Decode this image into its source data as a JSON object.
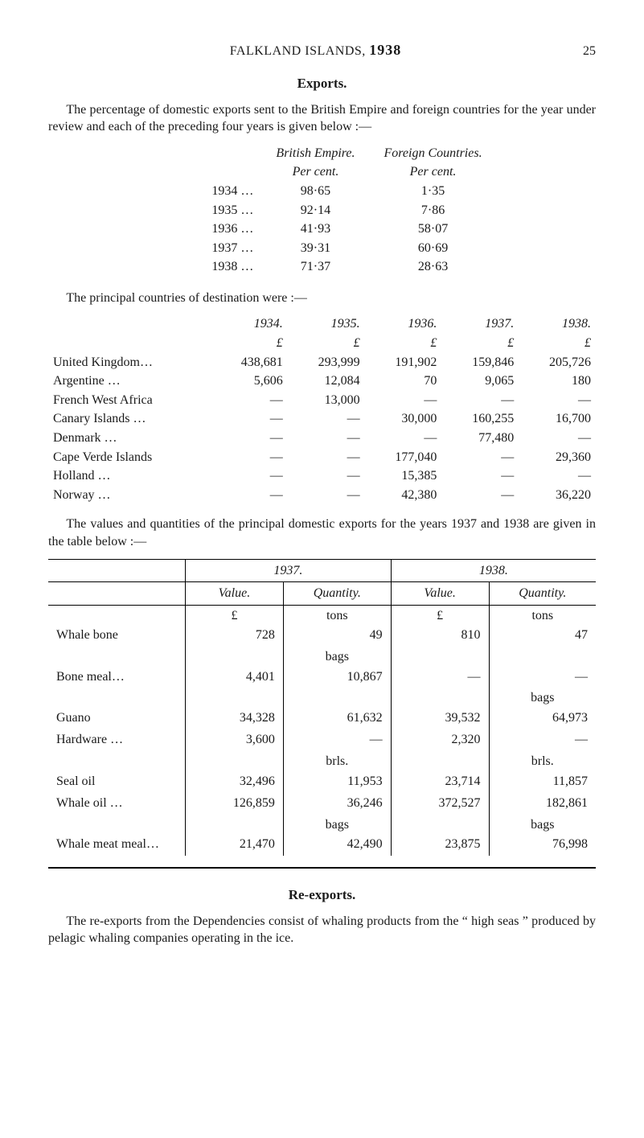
{
  "header": {
    "running_head_prefix": "FALKLAND ISLANDS,",
    "running_head_year": "1938",
    "page_number": "25"
  },
  "section_exports": {
    "title": "Exports.",
    "para1": "The percentage of domestic exports sent to the British Empire and foreign countries for the year under review and each of the preceding four years is given below :—",
    "table1": {
      "col_headers": [
        "",
        "British Empire.",
        "Foreign Countries."
      ],
      "sub_headers": [
        "",
        "Per cent.",
        "Per cent."
      ],
      "rows": [
        {
          "year": "1934  …",
          "be": "98·65",
          "fc": "1·35"
        },
        {
          "year": "1935  …",
          "be": "92·14",
          "fc": "7·86"
        },
        {
          "year": "1936  …",
          "be": "41·93",
          "fc": "58·07"
        },
        {
          "year": "1937  …",
          "be": "39·31",
          "fc": "60·69"
        },
        {
          "year": "1938  …",
          "be": "71·37",
          "fc": "28·63"
        }
      ]
    },
    "para2": "The principal countries of destination were :—",
    "table2": {
      "year_headers": [
        "1934.",
        "1935.",
        "1936.",
        "1937.",
        "1938."
      ],
      "unit_headers": [
        "£",
        "£",
        "£",
        "£",
        "£"
      ],
      "rows": [
        {
          "lbl": "United Kingdom…",
          "v": [
            "438,681",
            "293,999",
            "191,902",
            "159,846",
            "205,726"
          ]
        },
        {
          "lbl": "Argentine …",
          "v": [
            "5,606",
            "12,084",
            "70",
            "9,065",
            "180"
          ]
        },
        {
          "lbl": "French West Africa",
          "v": [
            "—",
            "13,000",
            "—",
            "—",
            "—"
          ]
        },
        {
          "lbl": "Canary Islands …",
          "v": [
            "—",
            "—",
            "30,000",
            "160,255",
            "16,700"
          ]
        },
        {
          "lbl": "Denmark …",
          "v": [
            "—",
            "—",
            "—",
            "77,480",
            "—"
          ]
        },
        {
          "lbl": "Cape Verde Islands",
          "v": [
            "—",
            "—",
            "177,040",
            "—",
            "29,360"
          ]
        },
        {
          "lbl": "Holland …",
          "v": [
            "—",
            "—",
            "15,385",
            "—",
            "—"
          ]
        },
        {
          "lbl": "Norway …",
          "v": [
            "—",
            "—",
            "42,380",
            "—",
            "36,220"
          ]
        }
      ]
    },
    "para3": "The values and quantities of the principal domestic exports for the years 1937 and 1938 are given in the table below :—",
    "table3": {
      "year_headers": [
        "1937.",
        "1938."
      ],
      "sub_headers": [
        "Value.",
        "Quantity.",
        "Value.",
        "Quantity."
      ],
      "unit_row1": [
        "£",
        "tons",
        "£",
        "tons"
      ],
      "rows1": [
        {
          "lbl": "Whale bone",
          "v": [
            "728",
            "49",
            "810",
            "47"
          ]
        }
      ],
      "unit_row2": [
        "",
        "bags",
        "",
        ""
      ],
      "rows2": [
        {
          "lbl": "Bone meal…",
          "v": [
            "4,401",
            "10,867",
            "—",
            "—"
          ]
        }
      ],
      "unit_row3": [
        "",
        "",
        "",
        "bags"
      ],
      "rows3": [
        {
          "lbl": "Guano",
          "v": [
            "34,328",
            "61,632",
            "39,532",
            "64,973"
          ]
        },
        {
          "lbl": "Hardware …",
          "v": [
            "3,600",
            "—",
            "2,320",
            "—"
          ]
        }
      ],
      "unit_row4": [
        "",
        "brls.",
        "",
        "brls."
      ],
      "rows4": [
        {
          "lbl": "Seal oil",
          "v": [
            "32,496",
            "11,953",
            "23,714",
            "11,857"
          ]
        },
        {
          "lbl": "Whale oil …",
          "v": [
            "126,859",
            "36,246",
            "372,527",
            "182,861"
          ]
        }
      ],
      "unit_row5": [
        "",
        "bags",
        "",
        "bags"
      ],
      "rows5": [
        {
          "lbl": "Whale meat meal…",
          "v": [
            "21,470",
            "42,490",
            "23,875",
            "76,998"
          ]
        }
      ]
    }
  },
  "section_reexports": {
    "title": "Re-exports.",
    "para1": "The re-exports from the Dependencies consist of whaling products from the “ high seas ” produced by pelagic whaling companies operating in the ice."
  }
}
